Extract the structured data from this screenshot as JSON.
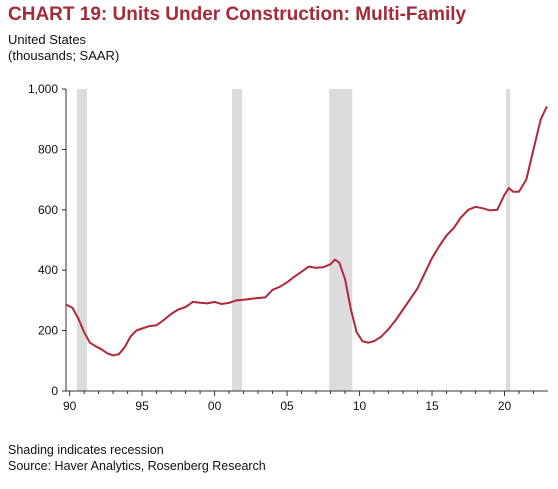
{
  "header": {
    "title": "CHART 19: Units Under Construction: Multi-Family",
    "subtitle_line1": "United States",
    "subtitle_line2": "(thousands; SAAR)"
  },
  "footer": {
    "note": "Shading indicates recession",
    "source": "Source: Haver Analytics, Rosenberg Research"
  },
  "colors": {
    "title": "#a52a3a",
    "line": "#b0283a",
    "recession": "#dcdcdc"
  },
  "chart_data": {
    "type": "line",
    "title": "CHART 19: Units Under Construction: Multi-Family",
    "xlabel": "",
    "ylabel": "",
    "ylim": [
      0,
      1000
    ],
    "xlim": [
      1989.75,
      2023.0
    ],
    "yticks": [
      0,
      200,
      400,
      600,
      800,
      1000
    ],
    "ytick_labels": [
      "0",
      "200",
      "400",
      "600",
      "800",
      "1,000"
    ],
    "xticks": [
      1990,
      1995,
      2000,
      2005,
      2010,
      2015,
      2020
    ],
    "xtick_labels": [
      "90",
      "95",
      "00",
      "05",
      "10",
      "15",
      "20"
    ],
    "grid": false,
    "recessions": [
      {
        "start": 1990.5,
        "end": 1991.2
      },
      {
        "start": 2001.2,
        "end": 2001.9
      },
      {
        "start": 2007.9,
        "end": 2009.5
      },
      {
        "start": 2020.1,
        "end": 2020.4
      }
    ],
    "series": [
      {
        "x": [
          1989.8,
          1990.2,
          1990.6,
          1991.0,
          1991.4,
          1991.8,
          1992.2,
          1992.6,
          1993.0,
          1993.4,
          1993.8,
          1994.2,
          1994.6,
          1995.0,
          1995.5,
          1996.0,
          1996.5,
          1997.0,
          1997.5,
          1998.0,
          1998.5,
          1999.0,
          1999.5,
          2000.0,
          2000.5,
          2001.0,
          2001.5,
          2002.0,
          2002.5,
          2003.0,
          2003.5,
          2004.0,
          2004.5,
          2005.0,
          2005.5,
          2006.0,
          2006.5,
          2007.0,
          2007.5,
          2008.0,
          2008.3,
          2008.6,
          2009.0,
          2009.4,
          2009.8,
          2010.2,
          2010.6,
          2011.0,
          2011.5,
          2012.0,
          2012.5,
          2013.0,
          2013.5,
          2014.0,
          2014.5,
          2015.0,
          2015.5,
          2016.0,
          2016.5,
          2017.0,
          2017.5,
          2018.0,
          2018.5,
          2019.0,
          2019.5,
          2020.0,
          2020.3,
          2020.6,
          2021.0,
          2021.5,
          2022.0,
          2022.5,
          2022.9
        ],
        "values": [
          285,
          275,
          240,
          195,
          160,
          148,
          138,
          125,
          118,
          122,
          145,
          180,
          200,
          207,
          215,
          218,
          235,
          255,
          270,
          278,
          295,
          292,
          290,
          295,
          288,
          292,
          300,
          302,
          305,
          308,
          310,
          335,
          345,
          360,
          378,
          395,
          412,
          408,
          410,
          420,
          435,
          425,
          370,
          270,
          195,
          165,
          160,
          165,
          180,
          205,
          235,
          270,
          305,
          340,
          390,
          440,
          480,
          515,
          540,
          575,
          600,
          610,
          605,
          598,
          600,
          650,
          672,
          660,
          660,
          700,
          800,
          900,
          940
        ]
      }
    ]
  }
}
